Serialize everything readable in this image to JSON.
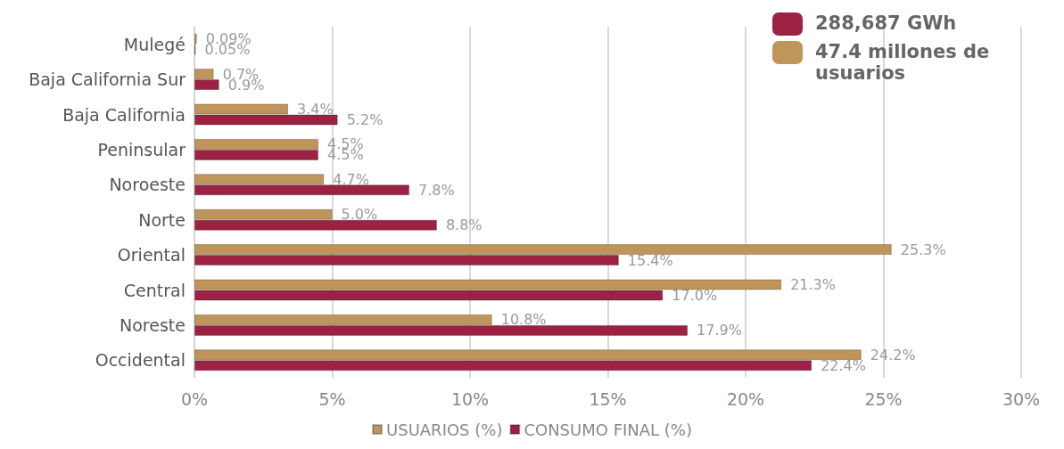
{
  "chart_data": {
    "type": "bar",
    "orientation": "horizontal",
    "categories": [
      "Mulegé",
      "Baja California Sur",
      "Baja California",
      "Peninsular",
      "Noroeste",
      "Norte",
      "Oriental",
      "Central",
      "Noreste",
      "Occidental"
    ],
    "series": [
      {
        "name": "USUARIOS (%)",
        "color": "#c0955a",
        "values": [
          0.09,
          0.7,
          3.4,
          4.5,
          4.7,
          5.0,
          25.3,
          21.3,
          10.8,
          24.2
        ],
        "value_labels": [
          "0.09%",
          "0.7%",
          "3.4%",
          "4.5%",
          "4.7%",
          "5.0%",
          "25.3%",
          "21.3%",
          "10.8%",
          "24.2%"
        ]
      },
      {
        "name": "CONSUMO FINAL (%)",
        "color": "#9b2242",
        "values": [
          0.05,
          0.9,
          5.2,
          4.5,
          7.8,
          8.8,
          15.4,
          17.0,
          17.9,
          22.4
        ],
        "value_labels": [
          "0.05%",
          "0.9%",
          "5.2%",
          "4.5%",
          "7.8%",
          "8.8%",
          "15.4%",
          "17.0%",
          "17.9%",
          "22.4%"
        ]
      }
    ],
    "xlim": [
      0,
      30
    ],
    "xticks": [
      {
        "value": 0,
        "label": "0%"
      },
      {
        "value": 5,
        "label": "5%"
      },
      {
        "value": 10,
        "label": "10%"
      },
      {
        "value": 15,
        "label": "15%"
      },
      {
        "value": 20,
        "label": "20%"
      },
      {
        "value": 25,
        "label": "25%"
      },
      {
        "value": 30,
        "label": "30%"
      }
    ],
    "grid": "x",
    "legend": "bottom",
    "annotations": [
      "288,687 GWh",
      "47.4 millones de usuarios"
    ]
  }
}
